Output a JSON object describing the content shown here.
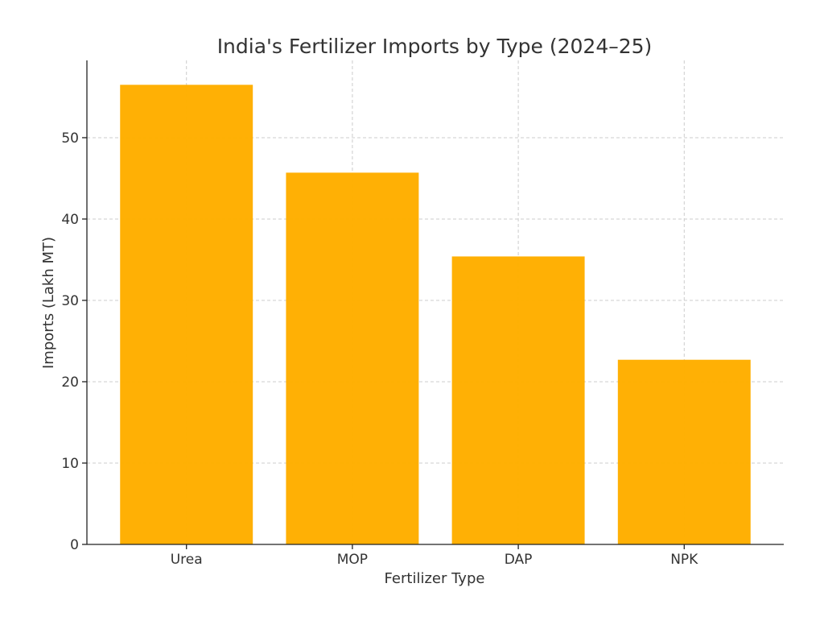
{
  "chart_data": {
    "type": "bar",
    "title": "India's Fertilizer Imports by Type (2024–25)",
    "xlabel": "Fertilizer Type",
    "ylabel": "Imports (Lakh MT)",
    "categories": [
      "Urea",
      "MOP",
      "DAP",
      "NPK"
    ],
    "values": [
      56.5,
      45.7,
      35.4,
      22.7
    ],
    "ylim": [
      0,
      59.5
    ],
    "yticks": [
      0,
      10,
      20,
      30,
      40,
      50
    ],
    "grid": true,
    "legend": "none",
    "bar_color": "#FFAE00"
  }
}
